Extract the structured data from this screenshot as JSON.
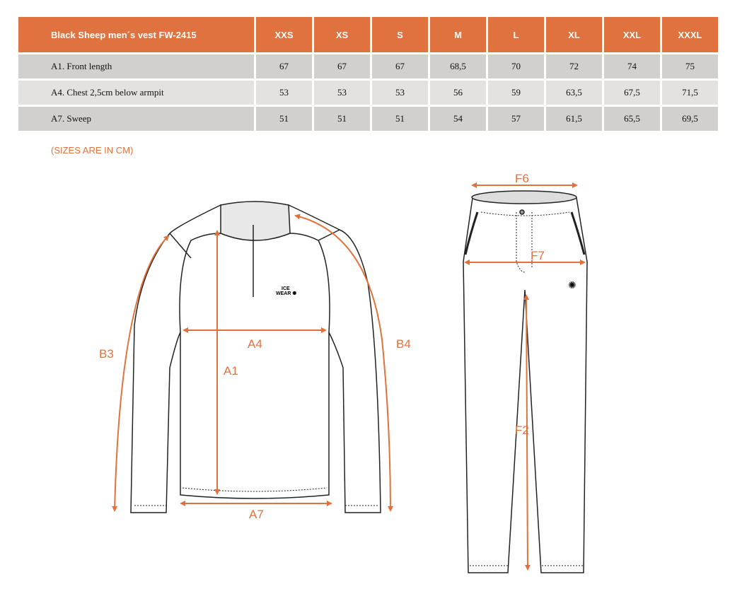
{
  "table": {
    "title": "Black Sheep men´s vest FW-2415",
    "sizes": [
      "XXS",
      "XS",
      "S",
      "M",
      "L",
      "XL",
      "XXL",
      "XXXL"
    ],
    "rows": [
      {
        "label": "A1. Front length",
        "values": [
          "67",
          "67",
          "67",
          "68,5",
          "70",
          "72",
          "74",
          "75"
        ]
      },
      {
        "label": "A4. Chest 2,5cm below armpit",
        "values": [
          "53",
          "53",
          "53",
          "56",
          "59",
          "63,5",
          "67,5",
          "71,5"
        ]
      },
      {
        "label": "A7. Sweep",
        "values": [
          "51",
          "51",
          "51",
          "54",
          "57",
          "61,5",
          "65,5",
          "69,5"
        ]
      }
    ]
  },
  "note": "(SIZES ARE IN CM)",
  "diagram": {
    "labels": {
      "a1": "A1",
      "a4": "A4",
      "a7": "A7",
      "b3": "B3",
      "b4": "B4",
      "f2": "F2",
      "f6": "F6",
      "f7": "F7"
    },
    "logo": "ICE WEAR",
    "accent_color": "#e0723f"
  }
}
